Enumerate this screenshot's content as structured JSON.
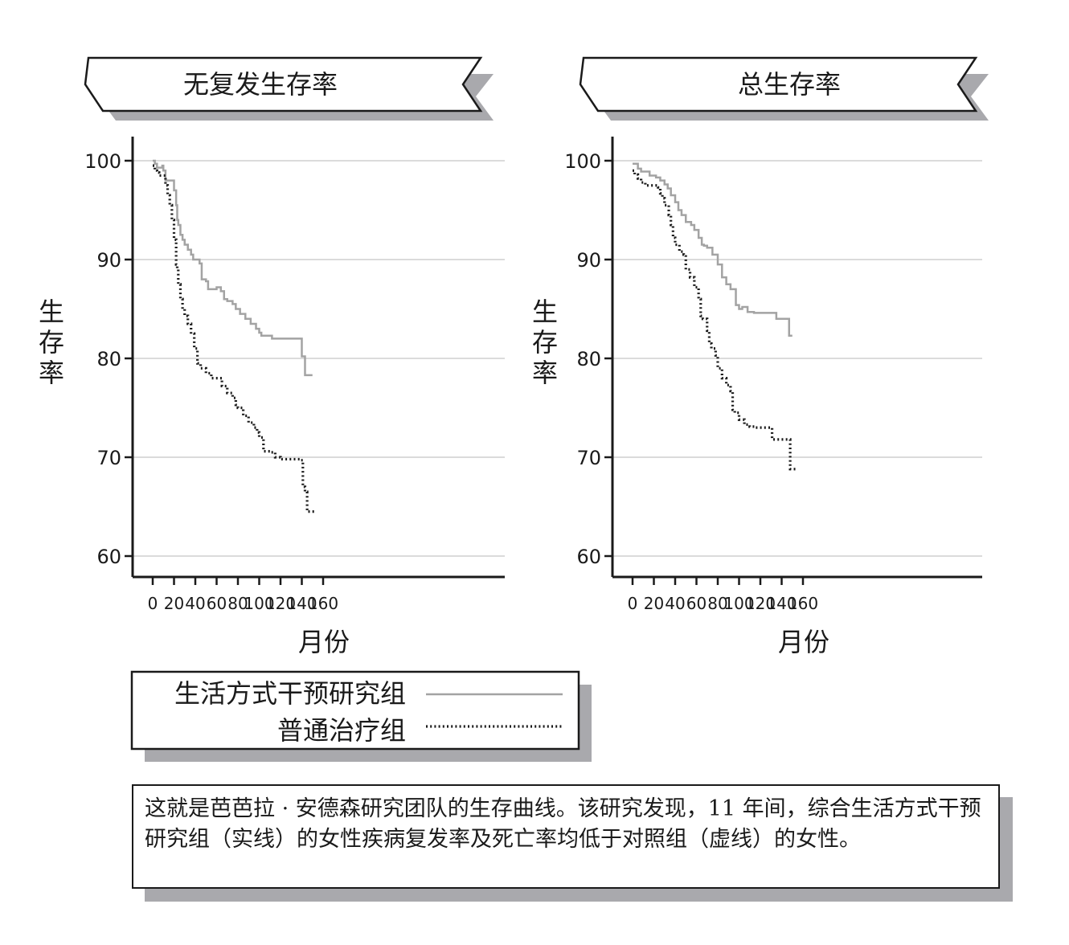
{
  "chart_data": [
    {
      "type": "line",
      "title": "无复发生存率",
      "xlabel": "月份",
      "ylabel": "生存率",
      "xlim": [
        0,
        160
      ],
      "ylim": [
        58,
        102
      ],
      "xticks": [
        0,
        20,
        40,
        60,
        80,
        100,
        120,
        140,
        160
      ],
      "yticks": [
        60,
        70,
        80,
        90,
        100
      ],
      "grid": true,
      "series": [
        {
          "name": "生活方式干预研究组",
          "style": "solid",
          "x": [
            0,
            2,
            4,
            6,
            9,
            10,
            12,
            18,
            20,
            22,
            23,
            24,
            26,
            28,
            30,
            33,
            36,
            38,
            40,
            44,
            46,
            50,
            52,
            60,
            64,
            67,
            70,
            75,
            78,
            82,
            87,
            92,
            97,
            100,
            102,
            112,
            120,
            138,
            140,
            142,
            143,
            150
          ],
          "y": [
            100,
            99.7,
            99.3,
            99.3,
            99.5,
            99,
            98,
            98,
            97,
            95.5,
            94,
            93.5,
            92.5,
            92,
            91.5,
            91,
            90.5,
            90,
            90,
            89.6,
            88,
            87.8,
            87,
            87.2,
            86.8,
            86,
            85.8,
            85.5,
            85,
            84.5,
            84,
            83.5,
            83,
            82.6,
            82.3,
            82,
            82,
            82,
            80.2,
            80.2,
            78.3,
            78.3
          ]
        },
        {
          "name": "普通治疗组",
          "style": "dotted",
          "x": [
            0,
            2,
            4,
            6,
            9,
            12,
            14,
            16,
            18,
            20,
            22,
            23,
            24,
            26,
            28,
            30,
            33,
            36,
            39,
            42,
            45,
            50,
            55,
            60,
            65,
            70,
            75,
            78,
            80,
            85,
            90,
            95,
            98,
            100,
            104,
            110,
            115,
            120,
            130,
            138,
            140,
            141,
            143,
            145,
            150,
            153
          ],
          "y": [
            99.5,
            99,
            98.8,
            98.5,
            98.5,
            97.5,
            96.5,
            95.5,
            94,
            92,
            89.5,
            89,
            87.5,
            86,
            85,
            84.3,
            83.5,
            82.5,
            81,
            79.5,
            79,
            78.5,
            78,
            78,
            77.2,
            76.5,
            76,
            75.3,
            75,
            74.2,
            73.5,
            73,
            72.5,
            72,
            70.6,
            70.5,
            70,
            69.8,
            69.8,
            69.7,
            69.7,
            67,
            66.5,
            64.5,
            64.5,
            64.5
          ]
        }
      ]
    },
    {
      "type": "line",
      "title": "总生存率",
      "xlabel": "月份",
      "ylabel": "生存率",
      "xlim": [
        0,
        160
      ],
      "ylim": [
        58,
        102
      ],
      "xticks": [
        0,
        20,
        40,
        60,
        80,
        100,
        120,
        140,
        160
      ],
      "yticks": [
        60,
        70,
        80,
        90,
        100
      ],
      "grid": true,
      "series": [
        {
          "name": "生活方式干预研究组",
          "style": "solid",
          "x": [
            0,
            5,
            8,
            13,
            16,
            22,
            26,
            30,
            33,
            36,
            40,
            43,
            46,
            50,
            55,
            58,
            62,
            65,
            67,
            70,
            75,
            80,
            84,
            88,
            92,
            95,
            97,
            100,
            103,
            108,
            114,
            120,
            128,
            130,
            135,
            140,
            145,
            147,
            150
          ],
          "y": [
            99.7,
            99.2,
            98.9,
            98.9,
            98.5,
            98.3,
            98,
            97.6,
            97.2,
            96.5,
            95.8,
            95,
            94.5,
            93.8,
            93.5,
            93,
            92.2,
            91.5,
            91.4,
            91.2,
            90.5,
            89.5,
            88.2,
            87.5,
            87,
            87,
            85.4,
            85,
            85.2,
            84.7,
            84.6,
            84.6,
            84.6,
            84.6,
            84,
            84,
            84,
            82.3,
            82.3
          ]
        },
        {
          "name": "普通治疗组",
          "style": "dotted",
          "x": [
            0,
            2,
            5,
            8,
            12,
            16,
            20,
            24,
            26,
            28,
            30,
            34,
            36,
            38,
            40,
            44,
            48,
            50,
            54,
            58,
            62,
            64,
            66,
            70,
            72,
            74,
            78,
            80,
            84,
            88,
            92,
            94,
            96,
            100,
            105,
            110,
            115,
            120,
            127,
            130,
            131,
            140,
            144,
            145,
            147,
            148,
            153
          ],
          "y": [
            99,
            98.6,
            98.2,
            97.8,
            97.5,
            97.5,
            97.5,
            97.3,
            96.7,
            96.2,
            95.5,
            94.5,
            93.5,
            92.2,
            91.5,
            90.8,
            90.5,
            89,
            88.2,
            87.2,
            86,
            84.3,
            84,
            82.8,
            81.5,
            81,
            80.3,
            79,
            78,
            77.3,
            76.7,
            74.8,
            74.5,
            73.8,
            73.3,
            73.1,
            73,
            73,
            73,
            73,
            71.8,
            71.8,
            71.8,
            71.8,
            71.8,
            68.8,
            68.8
          ]
        }
      ]
    }
  ],
  "legend": {
    "items": [
      {
        "label": "生活方式干预研究组",
        "style": "solid",
        "color": "#a3a3a3"
      },
      {
        "label": "普通治疗组",
        "style": "dotted",
        "color": "#1a1a1a"
      }
    ]
  },
  "caption": "这就是芭芭拉 · 安德森研究团队的生存曲线。该研究发现，11 年间，综合生活方式干预研究组（实线）的女性疾病复发率及死亡率均低于对照组（虚线）的女性。",
  "colors": {
    "solid_line": "#a3a3a3",
    "dotted_line": "#1a1a1a",
    "gridline": "#cfcfcf",
    "shadow": "#a9a9ad",
    "axis": "#1a1a1a"
  }
}
